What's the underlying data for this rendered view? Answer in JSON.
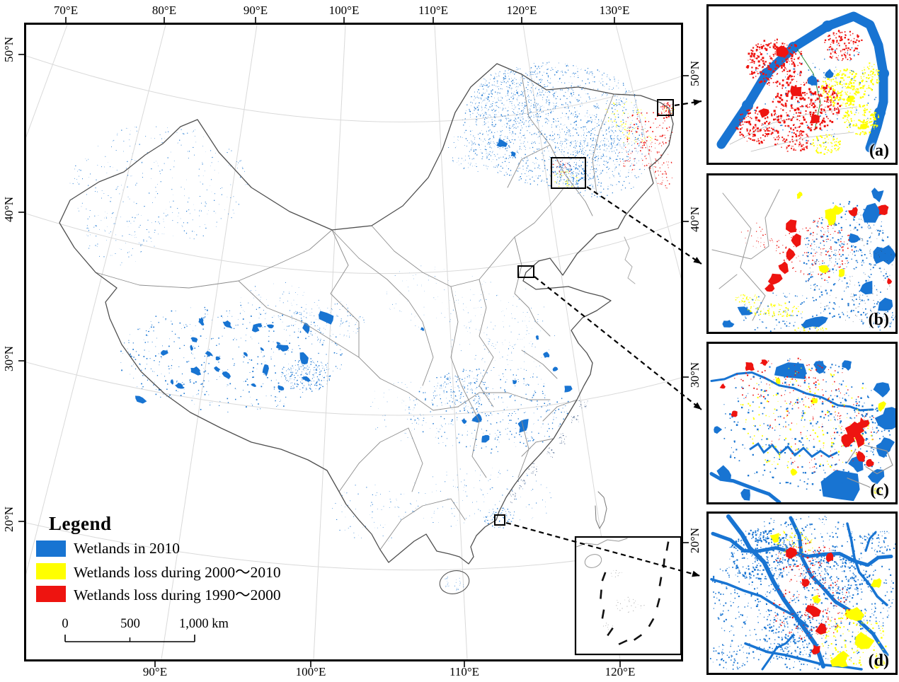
{
  "colors": {
    "wetland_blue": "#1874D2",
    "loss_2000_2010_yellow": "#FFFF00",
    "loss_1990_2000_red": "#EE1410",
    "border_black": "#000000",
    "province_gray": "#8c8c8c",
    "graticule_gray": "#d9d9d9"
  },
  "main_map": {
    "top_axis": [
      "70°E",
      "80°E",
      "90°E",
      "100°E",
      "110°E",
      "120°E",
      "130°E"
    ],
    "bottom_axis": [
      "90°E",
      "100°E",
      "110°E",
      "120°E"
    ],
    "left_axis": [
      "50°N",
      "40°N",
      "30°N",
      "20°N"
    ],
    "right_axis": [
      "50°N",
      "40°N",
      "30°N",
      "20°N"
    ]
  },
  "legend": {
    "title": "Legend",
    "items": [
      {
        "label": "Wetlands in 2010",
        "color": "#1874D2"
      },
      {
        "label": "Wetlands loss during 2000～2010",
        "color": "#FFFF00"
      },
      {
        "label": "Wetlands loss during 1990～2000",
        "color": "#EE1410"
      }
    ]
  },
  "scale_bar": {
    "labels": [
      "0",
      "500",
      "1,000 km"
    ]
  },
  "panels": [
    {
      "label": "(a)"
    },
    {
      "label": "(b)"
    },
    {
      "label": "(c)"
    },
    {
      "label": "(d)"
    }
  ]
}
